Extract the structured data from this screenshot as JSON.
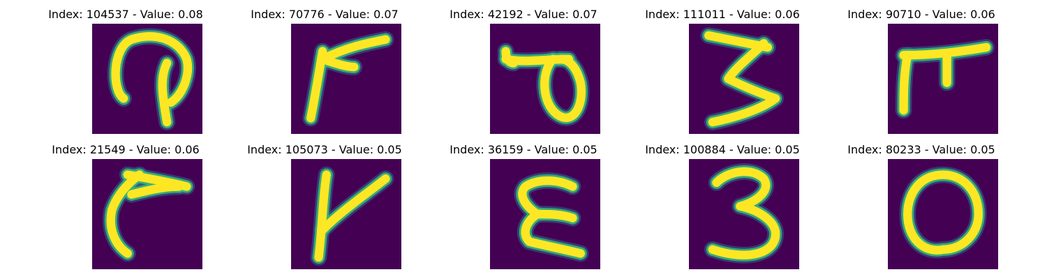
{
  "panels": [
    {
      "title": "Index: 104537 - Value: 0.08",
      "index": 104537,
      "value": 0.08
    },
    {
      "title": "Index: 70776 - Value: 0.07",
      "index": 70776,
      "value": 0.07
    },
    {
      "title": "Index: 42192 - Value: 0.07",
      "index": 42192,
      "value": 0.07
    },
    {
      "title": "Index: 111011 - Value: 0.06",
      "index": 111011,
      "value": 0.06
    },
    {
      "title": "Index: 90710 - Value: 0.06",
      "index": 90710,
      "value": 0.06
    },
    {
      "title": "Index: 21549 - Value: 0.06",
      "index": 21549,
      "value": 0.06
    },
    {
      "title": "Index: 105073 - Value: 0.05",
      "index": 105073,
      "value": 0.05
    },
    {
      "title": "Index: 36159 - Value: 0.05",
      "index": 36159,
      "value": 0.05
    },
    {
      "title": "Index: 100884 - Value: 0.05",
      "index": 100884,
      "value": 0.05
    },
    {
      "title": "Index: 80233 - Value: 0.05",
      "index": 80233,
      "value": 0.05
    }
  ],
  "colors": {
    "background": "#440154",
    "stroke_core": "#fde725",
    "stroke_edge": "#35b779",
    "stroke_halo": "#31688e"
  }
}
